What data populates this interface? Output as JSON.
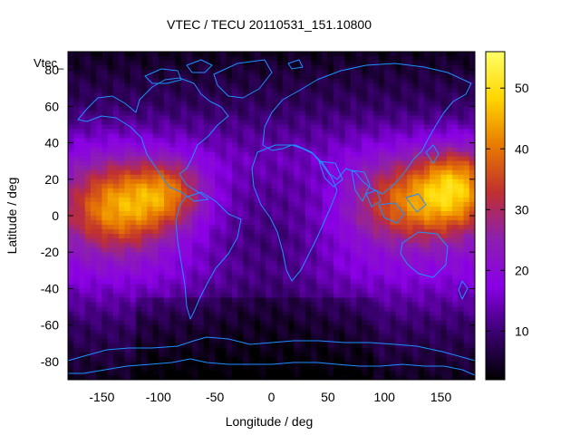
{
  "chart_data": {
    "type": "heatmap",
    "title": "VTEC / TECU 20110531_151.10800",
    "overlay_label": "Vtec_",
    "xlabel": "Longitude / deg",
    "ylabel": "Latitude / deg",
    "xlim": [
      -180,
      180
    ],
    "ylim": [
      -90,
      90
    ],
    "x_ticks": [
      -150,
      -100,
      -50,
      0,
      50,
      100,
      150
    ],
    "y_ticks": [
      -80,
      -60,
      -40,
      -20,
      0,
      20,
      40,
      60,
      80
    ],
    "colorbar": {
      "range": [
        2,
        56
      ],
      "ticks": [
        10,
        20,
        30,
        40,
        50
      ]
    },
    "colormap": [
      "#000000",
      "#3a0070",
      "#8a00e6",
      "#8c1fb0",
      "#c03030",
      "#e87a00",
      "#ffd600",
      "#ffff66"
    ],
    "coastline_color": "#1e90ff",
    "grid": false,
    "anomalies": [
      {
        "lon": -135,
        "lat": 5,
        "value": 42,
        "sigma_lon": 32,
        "sigma_lat": 17
      },
      {
        "lon": -90,
        "lat": 13,
        "value": 34,
        "sigma_lon": 22,
        "sigma_lat": 12
      },
      {
        "lon": 130,
        "lat": 8,
        "value": 40,
        "sigma_lon": 40,
        "sigma_lat": 16
      },
      {
        "lon": 165,
        "lat": 18,
        "value": 35,
        "sigma_lon": 22,
        "sigma_lat": 14
      },
      {
        "lon": 50,
        "lat": 12,
        "value": 16,
        "sigma_lon": 26,
        "sigma_lat": 14
      }
    ]
  }
}
